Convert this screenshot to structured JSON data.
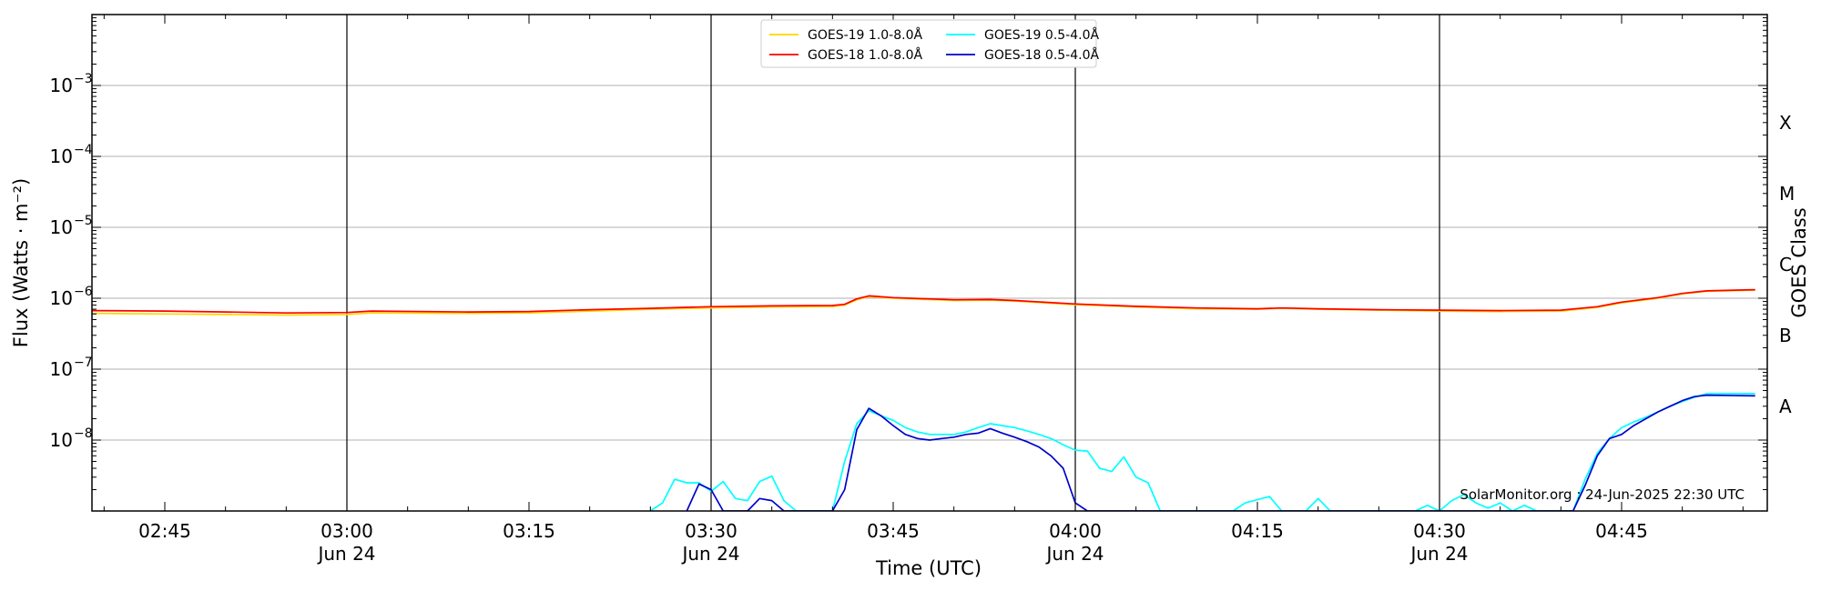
{
  "chart_data": {
    "type": "line",
    "ylabel": "Flux (Watts · m⁻²)",
    "xlabel": "Time (UTC)",
    "y2label": "GOES Class",
    "yscale": "log",
    "ylim": [
      1e-09,
      0.01
    ],
    "xlim": [
      "2025-06-24 02:39",
      "2025-06-24 04:57"
    ],
    "x_ticks": [
      {
        "time": "02:45",
        "date": ""
      },
      {
        "time": "03:00",
        "date": "Jun 24"
      },
      {
        "time": "03:15",
        "date": ""
      },
      {
        "time": "03:30",
        "date": "Jun 24"
      },
      {
        "time": "03:45",
        "date": ""
      },
      {
        "time": "04:00",
        "date": "Jun 24"
      },
      {
        "time": "04:15",
        "date": ""
      },
      {
        "time": "04:30",
        "date": "Jun 24"
      },
      {
        "time": "04:45",
        "date": ""
      }
    ],
    "y_ticks": [
      {
        "base": "10",
        "exp": "−3",
        "value": 0.001
      },
      {
        "base": "10",
        "exp": "−4",
        "value": 0.0001
      },
      {
        "base": "10",
        "exp": "−5",
        "value": 1e-05
      },
      {
        "base": "10",
        "exp": "−6",
        "value": 1e-06
      },
      {
        "base": "10",
        "exp": "−7",
        "value": 1e-07
      },
      {
        "base": "10",
        "exp": "−8",
        "value": 1e-08
      }
    ],
    "goes_classes": [
      {
        "label": "X",
        "value": 0.0003
      },
      {
        "label": "M",
        "value": 3e-05
      },
      {
        "label": "C",
        "value": 3e-06
      },
      {
        "label": "B",
        "value": 3e-07
      },
      {
        "label": "A",
        "value": 3e-08
      }
    ],
    "vlines": [
      "03:00",
      "03:30",
      "04:00",
      "04:30"
    ],
    "grid": "horizontal",
    "legend": {
      "placement": "top-center",
      "columns": 2
    },
    "series": [
      {
        "name": "GOES-19 1.0-8.0Å",
        "color": "#FFD700",
        "points": [
          [
            "02:39",
            6.1e-07
          ],
          [
            "02:45",
            6e-07
          ],
          [
            "02:50",
            5.9e-07
          ],
          [
            "02:55",
            5.8e-07
          ],
          [
            "03:00",
            5.9e-07
          ],
          [
            "03:02",
            6.2e-07
          ],
          [
            "03:10",
            6.1e-07
          ],
          [
            "03:15",
            6.2e-07
          ],
          [
            "03:20",
            6.6e-07
          ],
          [
            "03:25",
            7e-07
          ],
          [
            "03:30",
            7.3e-07
          ],
          [
            "03:35",
            7.5e-07
          ],
          [
            "03:40",
            7.6e-07
          ],
          [
            "03:41",
            8e-07
          ],
          [
            "03:42",
            9.5e-07
          ],
          [
            "03:43",
            1.05e-06
          ],
          [
            "03:45",
            1e-06
          ],
          [
            "03:50",
            9.3e-07
          ],
          [
            "03:53",
            9.4e-07
          ],
          [
            "03:55",
            9.1e-07
          ],
          [
            "04:00",
            8.1e-07
          ],
          [
            "04:05",
            7.5e-07
          ],
          [
            "04:10",
            7.1e-07
          ],
          [
            "04:15",
            7e-07
          ],
          [
            "04:17",
            7.2e-07
          ],
          [
            "04:20",
            7e-07
          ],
          [
            "04:25",
            6.8e-07
          ],
          [
            "04:30",
            6.6e-07
          ],
          [
            "04:35",
            6.5e-07
          ],
          [
            "04:40",
            6.6e-07
          ],
          [
            "04:43",
            7.4e-07
          ],
          [
            "04:45",
            8.6e-07
          ],
          [
            "04:48",
            1e-06
          ],
          [
            "04:50",
            1.15e-06
          ],
          [
            "04:52",
            1.25e-06
          ],
          [
            "04:56",
            1.3e-06
          ]
        ]
      },
      {
        "name": "GOES-18 1.0-8.0Å",
        "color": "#FF0000",
        "points": [
          [
            "02:39",
            6.7e-07
          ],
          [
            "02:45",
            6.6e-07
          ],
          [
            "02:50",
            6.4e-07
          ],
          [
            "02:55",
            6.2e-07
          ],
          [
            "03:00",
            6.3e-07
          ],
          [
            "03:02",
            6.6e-07
          ],
          [
            "03:10",
            6.4e-07
          ],
          [
            "03:15",
            6.5e-07
          ],
          [
            "03:20",
            6.9e-07
          ],
          [
            "03:25",
            7.2e-07
          ],
          [
            "03:30",
            7.6e-07
          ],
          [
            "03:35",
            7.8e-07
          ],
          [
            "03:40",
            7.9e-07
          ],
          [
            "03:41",
            8.2e-07
          ],
          [
            "03:42",
            9.8e-07
          ],
          [
            "03:43",
            1.08e-06
          ],
          [
            "03:45",
            1.02e-06
          ],
          [
            "03:50",
            9.5e-07
          ],
          [
            "03:53",
            9.6e-07
          ],
          [
            "03:55",
            9.3e-07
          ],
          [
            "04:00",
            8.3e-07
          ],
          [
            "04:05",
            7.7e-07
          ],
          [
            "04:10",
            7.3e-07
          ],
          [
            "04:15",
            7.1e-07
          ],
          [
            "04:17",
            7.3e-07
          ],
          [
            "04:20",
            7.1e-07
          ],
          [
            "04:25",
            6.9e-07
          ],
          [
            "04:30",
            6.8e-07
          ],
          [
            "04:35",
            6.7e-07
          ],
          [
            "04:40",
            6.8e-07
          ],
          [
            "04:43",
            7.6e-07
          ],
          [
            "04:45",
            8.8e-07
          ],
          [
            "04:48",
            1.02e-06
          ],
          [
            "04:50",
            1.17e-06
          ],
          [
            "04:52",
            1.27e-06
          ],
          [
            "04:56",
            1.32e-06
          ]
        ]
      },
      {
        "name": "GOES-19 0.5-4.0Å",
        "color": "#00FFFF",
        "points": [
          [
            "03:25",
            1e-09
          ],
          [
            "03:26",
            1.3e-09
          ],
          [
            "03:27",
            2.8e-09
          ],
          [
            "03:28",
            2.5e-09
          ],
          [
            "03:29",
            2.5e-09
          ],
          [
            "03:30",
            1.9e-09
          ],
          [
            "03:31",
            2.6e-09
          ],
          [
            "03:32",
            1.5e-09
          ],
          [
            "03:33",
            1.4e-09
          ],
          [
            "03:34",
            2.6e-09
          ],
          [
            "03:35",
            3.1e-09
          ],
          [
            "03:36",
            1.4e-09
          ],
          [
            "03:37",
            1e-09
          ],
          [
            "03:40",
            1e-09
          ],
          [
            "03:41",
            5e-09
          ],
          [
            "03:42",
            1.7e-08
          ],
          [
            "03:43",
            2.6e-08
          ],
          [
            "03:44",
            2.2e-08
          ],
          [
            "03:45",
            1.9e-08
          ],
          [
            "03:46",
            1.5e-08
          ],
          [
            "03:47",
            1.3e-08
          ],
          [
            "03:48",
            1.2e-08
          ],
          [
            "03:50",
            1.2e-08
          ],
          [
            "03:51",
            1.3e-08
          ],
          [
            "03:52",
            1.5e-08
          ],
          [
            "03:53",
            1.7e-08
          ],
          [
            "03:54",
            1.6e-08
          ],
          [
            "03:55",
            1.5e-08
          ],
          [
            "03:56",
            1.35e-08
          ],
          [
            "03:57",
            1.2e-08
          ],
          [
            "03:58",
            1.05e-08
          ],
          [
            "03:59",
            8.6e-09
          ],
          [
            "04:00",
            7.2e-09
          ],
          [
            "04:01",
            7e-09
          ],
          [
            "04:02",
            4e-09
          ],
          [
            "04:03",
            3.6e-09
          ],
          [
            "04:04",
            5.8e-09
          ],
          [
            "04:05",
            3e-09
          ],
          [
            "04:06",
            2.5e-09
          ],
          [
            "04:07",
            1e-09
          ],
          [
            "04:13",
            1e-09
          ],
          [
            "04:14",
            1.3e-09
          ],
          [
            "04:16",
            1.6e-09
          ],
          [
            "04:17",
            1e-09
          ],
          [
            "04:19",
            1e-09
          ],
          [
            "04:20",
            1.5e-09
          ],
          [
            "04:21",
            1e-09
          ],
          [
            "04:28",
            1e-09
          ],
          [
            "04:29",
            1.2e-09
          ],
          [
            "04:30",
            1e-09
          ],
          [
            "04:31",
            1.4e-09
          ],
          [
            "04:32",
            1.7e-09
          ],
          [
            "04:33",
            1.3e-09
          ],
          [
            "04:34",
            1.1e-09
          ],
          [
            "04:35",
            1.3e-09
          ],
          [
            "04:36",
            1e-09
          ],
          [
            "04:37",
            1.2e-09
          ],
          [
            "04:38",
            1e-09
          ],
          [
            "04:41",
            1e-09
          ],
          [
            "04:42",
            2.8e-09
          ],
          [
            "04:43",
            6.5e-09
          ],
          [
            "04:44",
            1.05e-08
          ],
          [
            "04:45",
            1.5e-08
          ],
          [
            "04:46",
            1.8e-08
          ],
          [
            "04:47",
            2.1e-08
          ],
          [
            "04:48",
            2.5e-08
          ],
          [
            "04:49",
            3e-08
          ],
          [
            "04:50",
            3.5e-08
          ],
          [
            "04:51",
            4e-08
          ],
          [
            "04:52",
            4.5e-08
          ],
          [
            "04:56",
            4.5e-08
          ]
        ]
      },
      {
        "name": "GOES-18 0.5-4.0Å",
        "color": "#0000CD",
        "points": [
          [
            "03:28",
            1e-09
          ],
          [
            "03:29",
            2.4e-09
          ],
          [
            "03:30",
            2e-09
          ],
          [
            "03:31",
            1e-09
          ],
          [
            "03:33",
            1e-09
          ],
          [
            "03:34",
            1.5e-09
          ],
          [
            "03:35",
            1.4e-09
          ],
          [
            "03:36",
            1e-09
          ],
          [
            "03:40",
            1e-09
          ],
          [
            "03:41",
            2e-09
          ],
          [
            "03:42",
            1.4e-08
          ],
          [
            "03:43",
            2.8e-08
          ],
          [
            "03:44",
            2.2e-08
          ],
          [
            "03:45",
            1.6e-08
          ],
          [
            "03:46",
            1.2e-08
          ],
          [
            "03:47",
            1.05e-08
          ],
          [
            "03:48",
            1e-08
          ],
          [
            "03:49",
            1.05e-08
          ],
          [
            "03:50",
            1.1e-08
          ],
          [
            "03:51",
            1.2e-08
          ],
          [
            "03:52",
            1.25e-08
          ],
          [
            "03:53",
            1.45e-08
          ],
          [
            "03:54",
            1.25e-08
          ],
          [
            "03:55",
            1.1e-08
          ],
          [
            "03:56",
            9.5e-09
          ],
          [
            "03:57",
            8e-09
          ],
          [
            "03:58",
            6e-09
          ],
          [
            "03:59",
            4e-09
          ],
          [
            "04:00",
            1.3e-09
          ],
          [
            "04:01",
            1e-09
          ],
          [
            "04:41",
            1e-09
          ],
          [
            "04:42",
            2.3e-09
          ],
          [
            "04:43",
            6e-09
          ],
          [
            "04:44",
            1.05e-08
          ],
          [
            "04:45",
            1.2e-08
          ],
          [
            "04:46",
            1.6e-08
          ],
          [
            "04:47",
            2e-08
          ],
          [
            "04:48",
            2.5e-08
          ],
          [
            "04:49",
            3e-08
          ],
          [
            "04:50",
            3.6e-08
          ],
          [
            "04:51",
            4.1e-08
          ],
          [
            "04:52",
            4.3e-08
          ],
          [
            "04:56",
            4.2e-08
          ]
        ]
      }
    ],
    "annotation": "SolarMonitor.org : 24-Jun-2025 22:30 UTC"
  }
}
